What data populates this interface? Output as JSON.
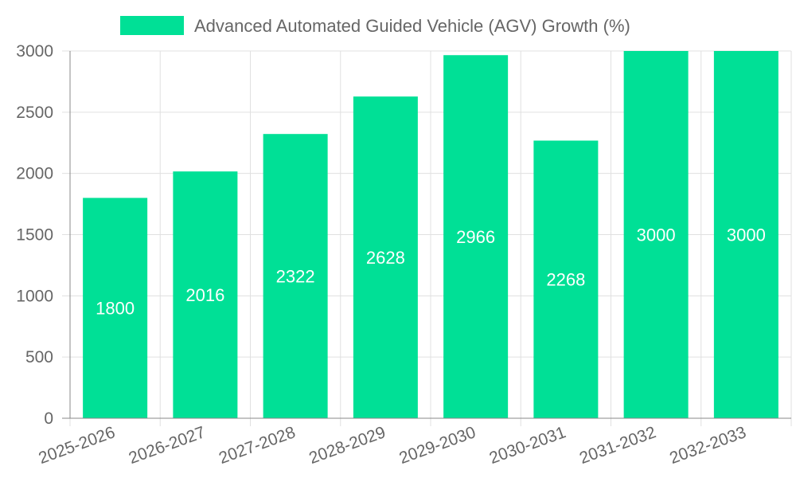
{
  "chart_data": {
    "type": "bar",
    "categories": [
      "2025-2026",
      "2026-2027",
      "2027-2028",
      "2028-2029",
      "2029-2030",
      "2030-2031",
      "2031-2032",
      "2032-2033"
    ],
    "series": [
      {
        "name": "Advanced Automated Guided Vehicle (AGV) Growth (%)",
        "values": [
          1800,
          2016,
          2322,
          2628,
          2966,
          2268,
          3000,
          3000
        ],
        "color": "#00e096"
      }
    ],
    "ylim": [
      0,
      3000
    ],
    "yticks": [
      0,
      500,
      1000,
      1500,
      2000,
      2500,
      3000
    ],
    "grid": true,
    "legend": "top-center"
  },
  "colors": {
    "bar": "#00e096",
    "grid": "#e0e0e0",
    "axis": "#888888",
    "text": "#666666",
    "label": "#ffffff"
  }
}
